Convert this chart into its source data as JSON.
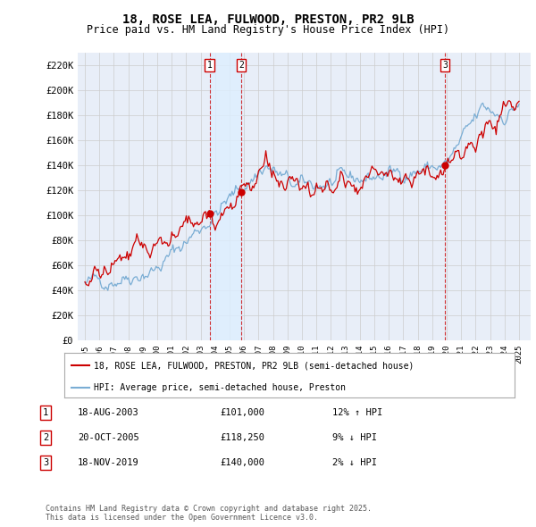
{
  "title": "18, ROSE LEA, FULWOOD, PRESTON, PR2 9LB",
  "subtitle": "Price paid vs. HM Land Registry's House Price Index (HPI)",
  "legend_line1": "18, ROSE LEA, FULWOOD, PRESTON, PR2 9LB (semi-detached house)",
  "legend_line2": "HPI: Average price, semi-detached house, Preston",
  "footer": "Contains HM Land Registry data © Crown copyright and database right 2025.\nThis data is licensed under the Open Government Licence v3.0.",
  "ylim": [
    0,
    230000
  ],
  "yticks": [
    0,
    20000,
    40000,
    60000,
    80000,
    100000,
    120000,
    140000,
    160000,
    180000,
    200000,
    220000
  ],
  "ytick_labels": [
    "£0",
    "£20K",
    "£40K",
    "£60K",
    "£80K",
    "£100K",
    "£120K",
    "£140K",
    "£160K",
    "£180K",
    "£200K",
    "£220K"
  ],
  "xlim_start": 1994.5,
  "xlim_end": 2025.8,
  "transactions": [
    {
      "num": 1,
      "date": "18-AUG-2003",
      "price": 101000,
      "year": 2003.625,
      "price_str": "£101,000",
      "hpi_pct": "12% ↑ HPI"
    },
    {
      "num": 2,
      "date": "20-OCT-2005",
      "price": 118250,
      "year": 2005.8,
      "price_str": "£118,250",
      "hpi_pct": "9% ↓ HPI"
    },
    {
      "num": 3,
      "date": "18-NOV-2019",
      "price": 140000,
      "year": 2019.88,
      "price_str": "£140,000",
      "hpi_pct": "2% ↓ HPI"
    }
  ],
  "red_color": "#cc0000",
  "blue_color": "#7aadd4",
  "shade_color": "#ddeeff",
  "grid_color": "#cccccc",
  "plot_bg": "#e8eef8"
}
